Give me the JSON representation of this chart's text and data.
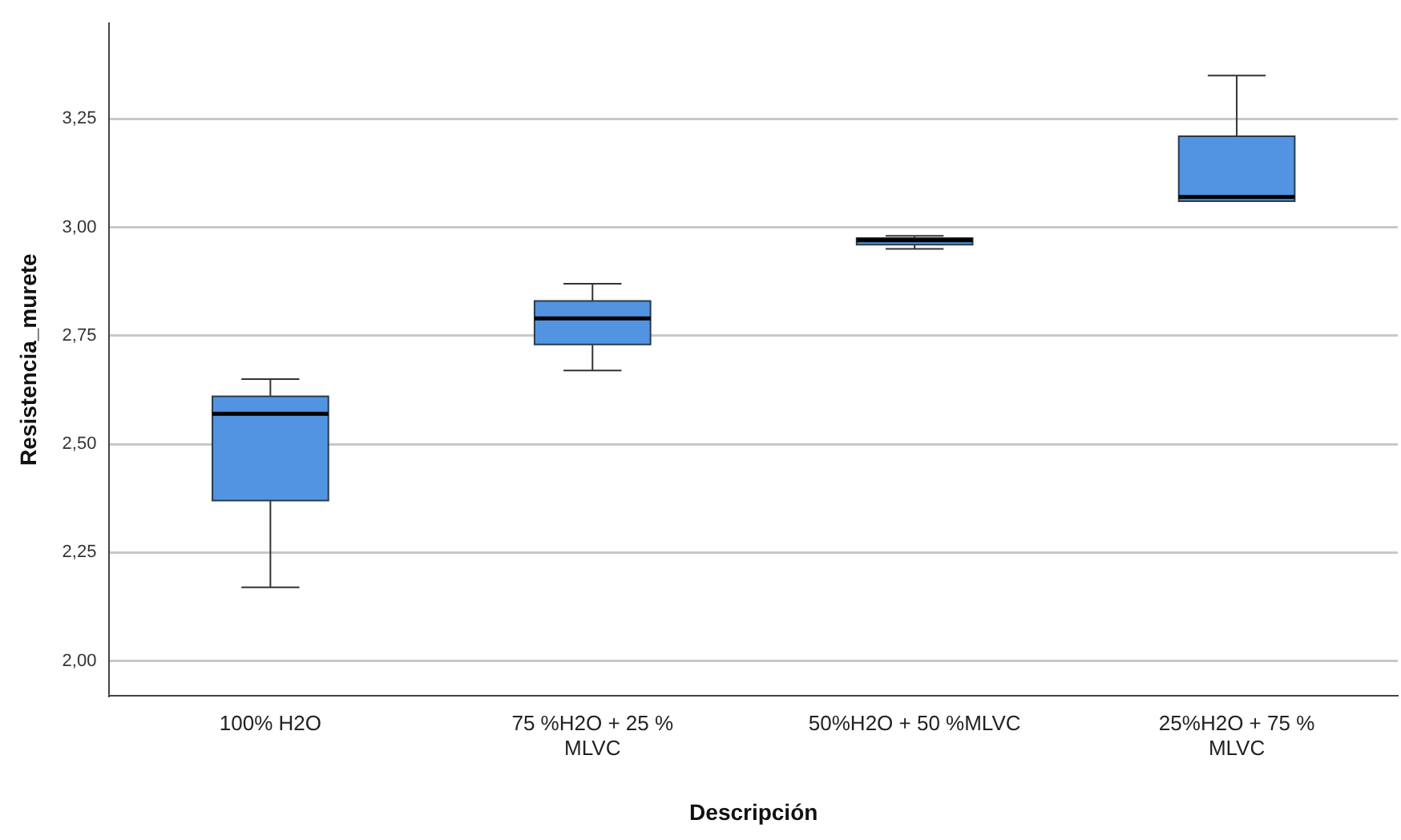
{
  "chart_data": {
    "type": "box",
    "xlabel": "Descripción",
    "ylabel": "Resistencia_murete",
    "categories": [
      "100% H2O",
      "75 %H2O + 25 % MLVC",
      "50%H2O + 50 %MLVC",
      "25%H2O + 75 % MLVC"
    ],
    "color": "#5294e2",
    "boxes": [
      {
        "low": 2.17,
        "q1": 2.37,
        "median": 2.57,
        "q3": 2.61,
        "high": 2.65
      },
      {
        "low": 2.67,
        "q1": 2.73,
        "median": 2.79,
        "q3": 2.83,
        "high": 2.87
      },
      {
        "low": 2.95,
        "q1": 2.96,
        "median": 2.97,
        "q3": 2.975,
        "high": 2.98
      },
      {
        "low": 3.06,
        "q1": 3.06,
        "median": 3.07,
        "q3": 3.21,
        "high": 3.35
      }
    ],
    "ylim": [
      1.92,
      3.47
    ],
    "yticks": [
      {
        "value": 2,
        "label": "2,00"
      },
      {
        "value": 2.25,
        "label": "2,25"
      },
      {
        "value": 2.5,
        "label": "2,50"
      },
      {
        "value": 2.75,
        "label": "2,75"
      },
      {
        "value": 3,
        "label": "3,00"
      },
      {
        "value": 3.25,
        "label": "3,25"
      }
    ],
    "grid": "y",
    "legend": false
  }
}
